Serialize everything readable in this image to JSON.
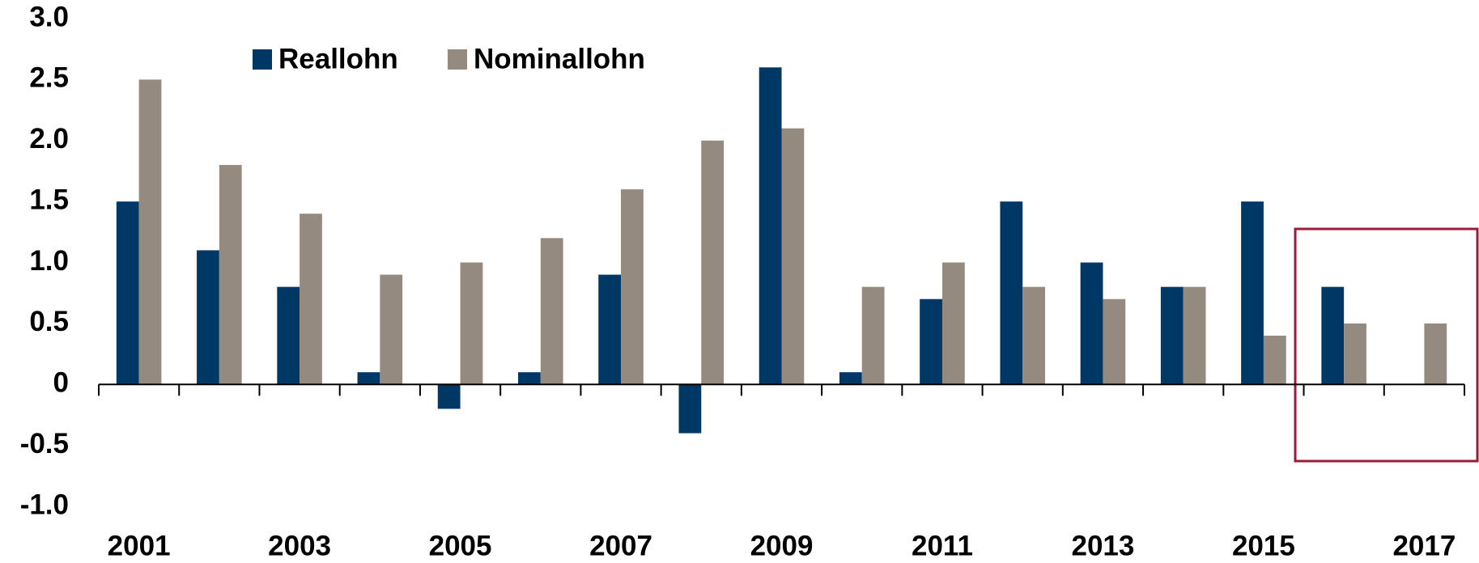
{
  "chart_data": {
    "type": "bar",
    "categories": [
      "2001",
      null,
      "2003",
      null,
      "2005",
      null,
      "2007",
      null,
      "2009",
      null,
      "2011",
      null,
      "2013",
      null,
      "2015",
      null,
      "2017"
    ],
    "series": [
      {
        "name": "Reallohn",
        "color": "#003865",
        "values": [
          1.5,
          1.1,
          0.8,
          0.1,
          -0.2,
          0.1,
          0.9,
          -0.4,
          2.6,
          0.1,
          0.7,
          1.5,
          1.0,
          0.8,
          1.5,
          0.8,
          null
        ]
      },
      {
        "name": "Nominallohn",
        "color": "#948a80",
        "values": [
          2.5,
          1.8,
          1.4,
          0.9,
          1.0,
          1.2,
          1.6,
          2.0,
          2.1,
          0.8,
          1.0,
          0.8,
          0.7,
          0.8,
          0.4,
          0.5,
          0.5
        ]
      }
    ],
    "ylim": [
      -1,
      3
    ],
    "yticks": [
      {
        "value": -1,
        "label": "-1.0"
      },
      -0.5,
      0,
      0.5,
      {
        "value": 1,
        "label": "1.0"
      },
      1.5,
      {
        "value": 2,
        "label": "2.0"
      },
      2.5,
      {
        "value": 3,
        "label": "3.0"
      }
    ],
    "grid": false,
    "legend": "top-left"
  }
}
